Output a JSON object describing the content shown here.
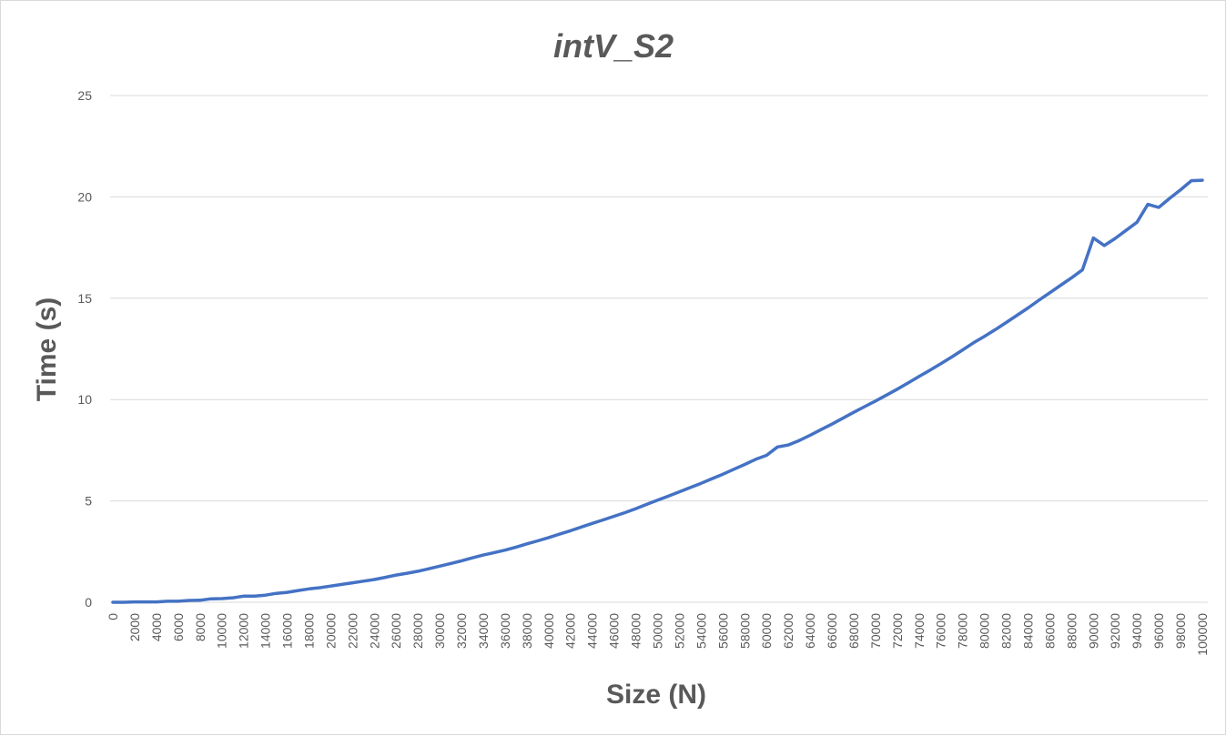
{
  "chart_data": {
    "type": "line",
    "title": "intV_S2",
    "xlabel": "Size (N)",
    "ylabel": "Time (s)",
    "ylim": [
      0,
      25
    ],
    "yticks": [
      0,
      5,
      10,
      15,
      20,
      25
    ],
    "grid": true,
    "legend": "none",
    "x_tick_step": 2000,
    "x": [
      0,
      1000,
      2000,
      3000,
      4000,
      5000,
      6000,
      7000,
      8000,
      9000,
      10000,
      11000,
      12000,
      13000,
      14000,
      15000,
      16000,
      17000,
      18000,
      19000,
      20000,
      21000,
      22000,
      23000,
      24000,
      25000,
      26000,
      27000,
      28000,
      29000,
      30000,
      31000,
      32000,
      33000,
      34000,
      35000,
      36000,
      37000,
      38000,
      39000,
      40000,
      41000,
      42000,
      43000,
      44000,
      45000,
      46000,
      47000,
      48000,
      49000,
      50000,
      51000,
      52000,
      53000,
      54000,
      55000,
      56000,
      57000,
      58000,
      59000,
      60000,
      61000,
      62000,
      63000,
      64000,
      65000,
      66000,
      67000,
      68000,
      69000,
      70000,
      71000,
      72000,
      73000,
      74000,
      75000,
      76000,
      77000,
      78000,
      79000,
      80000,
      81000,
      82000,
      83000,
      84000,
      85000,
      86000,
      87000,
      88000,
      89000,
      90000,
      91000,
      92000,
      93000,
      94000,
      95000,
      96000,
      97000,
      98000,
      99000,
      100000
    ],
    "series": [
      {
        "name": "",
        "color": "#4472c4",
        "values": [
          0,
          0,
          0.02,
          0.02,
          0.02,
          0.05,
          0.05,
          0.09,
          0.1,
          0.17,
          0.18,
          0.22,
          0.3,
          0.3,
          0.35,
          0.44,
          0.49,
          0.58,
          0.66,
          0.72,
          0.8,
          0.88,
          0.96,
          1.04,
          1.12,
          1.23,
          1.34,
          1.43,
          1.53,
          1.65,
          1.78,
          1.91,
          2.04,
          2.19,
          2.33,
          2.45,
          2.57,
          2.72,
          2.88,
          3.03,
          3.19,
          3.36,
          3.53,
          3.71,
          3.89,
          4.06,
          4.24,
          4.42,
          4.62,
          4.83,
          5.04,
          5.24,
          5.45,
          5.66,
          5.87,
          6.1,
          6.32,
          6.56,
          6.8,
          7.05,
          7.25,
          7.66,
          7.76,
          7.98,
          8.24,
          8.52,
          8.79,
          9.08,
          9.37,
          9.65,
          9.93,
          10.22,
          10.51,
          10.82,
          11.14,
          11.45,
          11.77,
          12.1,
          12.45,
          12.8,
          13.12,
          13.45,
          13.8,
          14.16,
          14.52,
          14.9,
          15.27,
          15.64,
          16.01,
          16.4,
          17.97,
          17.6,
          17.95,
          18.35,
          18.75,
          19.63,
          19.48,
          19.93,
          20.35,
          20.8,
          20.82
        ]
      }
    ]
  }
}
